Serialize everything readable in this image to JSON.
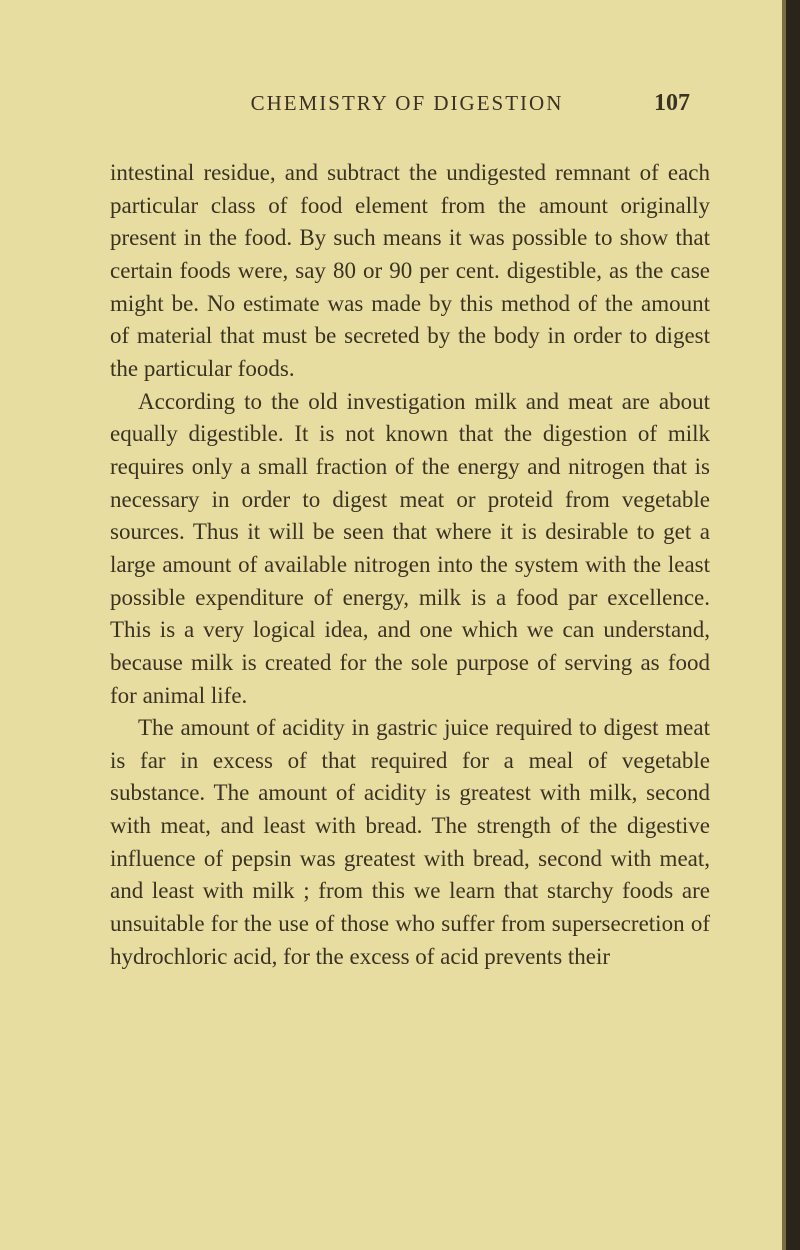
{
  "page": {
    "header_title": "CHEMISTRY OF DIGESTION",
    "page_number": "107",
    "paragraphs": [
      "intestinal residue, and subtract the undigested remnant of each particular class of food element from the amount originally present in the food. By such means it was possible to show that certain foods were, say 80 or 90 per cent. digestible, as the case might be. No estimate was made by this method of the amount of material that must be secreted by the body in order to digest the particular foods.",
      "According to the old investigation milk and meat are about equally digestible. It is not known that the digestion of milk requires only a small fraction of the energy and nitrogen that is necessary in order to digest meat or proteid from vegetable sources. Thus it will be seen that where it is desirable to get a large amount of available nitrogen into the system with the least possible expenditure of energy, milk is a food par excellence. This is a very logical idea, and one which we can understand, because milk is created for the sole purpose of serving as food for animal life.",
      "The amount of acidity in gastric juice required to digest meat is far in excess of that required for a meal of vegetable substance. The amount of acidity is greatest with milk, second with meat, and least with bread. The strength of the digestive influence of pepsin was greatest with bread, second with meat, and least with milk ; from this we learn that starchy foods are unsuitable for the use of those who suffer from supersecretion of hydrochloric acid, for the excess of acid prevents their"
    ]
  },
  "styling": {
    "background_color": "#e8dda0",
    "text_color": "#3a3222",
    "border_dark": "#2a2518",
    "border_mid": "#7a6e45",
    "body_fontsize": 23,
    "header_fontsize": 21,
    "pagenum_fontsize": 24,
    "line_height": 1.42,
    "font_family": "Times New Roman, Georgia, serif"
  }
}
